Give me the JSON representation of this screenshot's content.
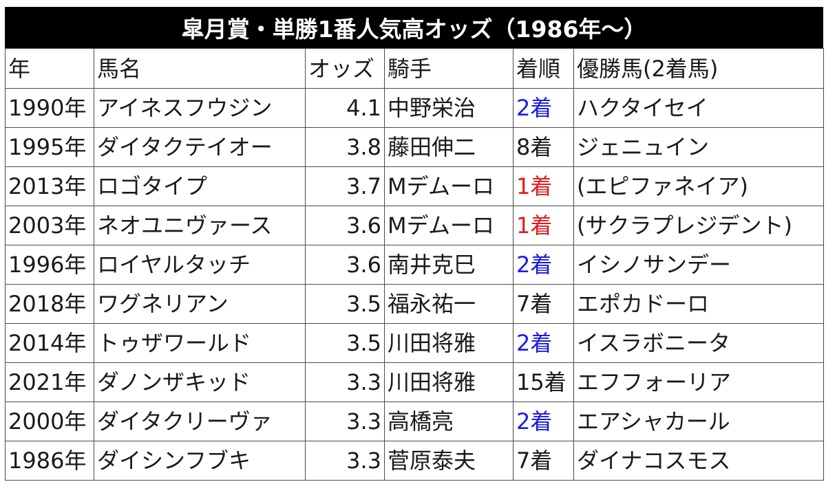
{
  "title": "皐月賞・単勝1番人気高オッズ（1986年～）",
  "headers": {
    "year": "年",
    "horse": "馬名",
    "odds": "オッズ",
    "jockey": "騎手",
    "place": "着順",
    "winner": "優勝馬(2着馬)"
  },
  "colors": {
    "title_bg": "#000000",
    "title_text": "#ffffff",
    "place_2nd": "#1a1ae6",
    "place_1st": "#e61a1a"
  },
  "rows": [
    {
      "year": "1990年",
      "horse": "アイネスフウジン",
      "odds": "4.1",
      "jockey": "中野栄治",
      "place": "2着",
      "winner": "ハクタイセイ"
    },
    {
      "year": "1995年",
      "horse": "ダイタクテイオー",
      "odds": "3.8",
      "jockey": "藤田伸二",
      "place": "8着",
      "winner": "ジェニュイン"
    },
    {
      "year": "2013年",
      "horse": "ロゴタイプ",
      "odds": "3.7",
      "jockey": "Mデムーロ",
      "place": "1着",
      "winner": "(エピファネイア)"
    },
    {
      "year": "2003年",
      "horse": "ネオユニヴァース",
      "odds": "3.6",
      "jockey": "Mデムーロ",
      "place": "1着",
      "winner": "(サクラプレジデント)"
    },
    {
      "year": "1996年",
      "horse": "ロイヤルタッチ",
      "odds": "3.6",
      "jockey": "南井克巳",
      "place": "2着",
      "winner": "イシノサンデー"
    },
    {
      "year": "2018年",
      "horse": "ワグネリアン",
      "odds": "3.5",
      "jockey": "福永祐一",
      "place": "7着",
      "winner": "エポカドーロ"
    },
    {
      "year": "2014年",
      "horse": "トゥザワールド",
      "odds": "3.5",
      "jockey": "川田将雅",
      "place": "2着",
      "winner": "イスラボニータ"
    },
    {
      "year": "2021年",
      "horse": "ダノンザキッド",
      "odds": "3.3",
      "jockey": "川田将雅",
      "place": "15着",
      "winner": "エフフォーリア"
    },
    {
      "year": "2000年",
      "horse": "ダイタクリーヴァ",
      "odds": "3.3",
      "jockey": "高橋亮",
      "place": "2着",
      "winner": "エアシャカール"
    },
    {
      "year": "1986年",
      "horse": "ダイシンフブキ",
      "odds": "3.3",
      "jockey": "菅原泰夫",
      "place": "7着",
      "winner": "ダイナコスモス"
    }
  ]
}
